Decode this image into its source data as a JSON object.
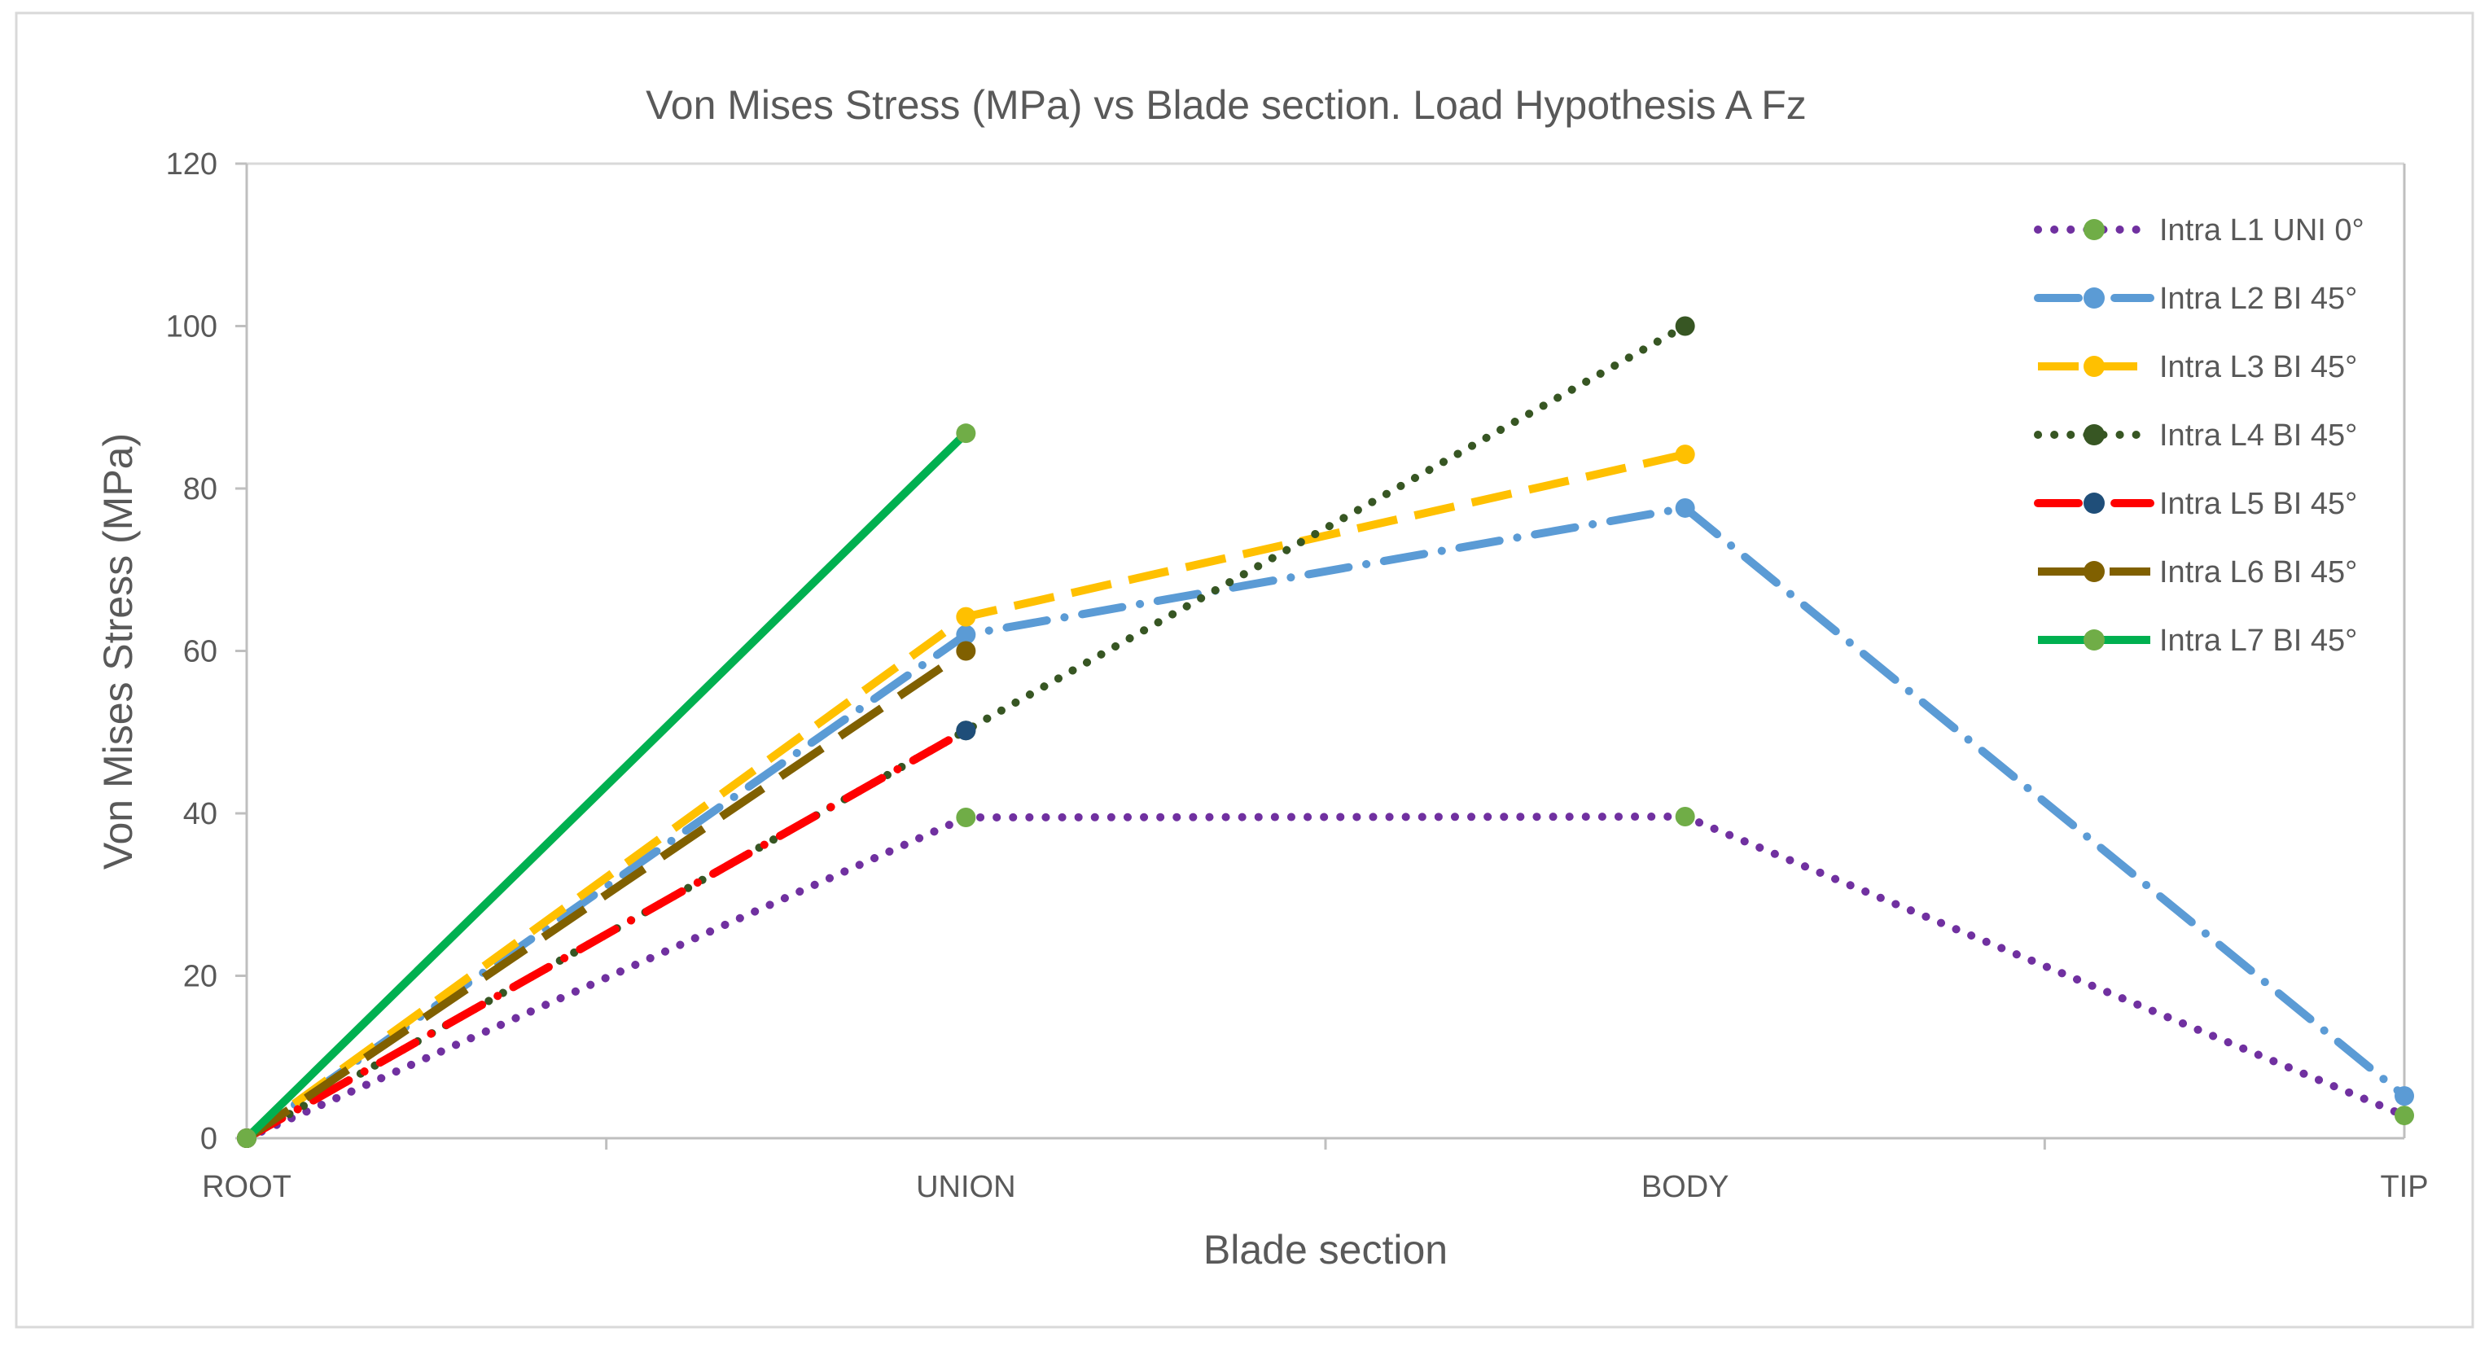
{
  "chart_data": {
    "type": "line",
    "title": "Von Mises Stress  (MPa) vs  Blade section. Load Hypothesis A Fz",
    "xlabel": "Blade section",
    "ylabel": "Von Mises Stress (MPa)",
    "categories": [
      "ROOT",
      "UNION",
      "BODY",
      "TIP"
    ],
    "ylim": [
      0,
      120
    ],
    "yticks": [
      0,
      20,
      40,
      60,
      80,
      100,
      120
    ],
    "legend_position": "top-right",
    "series": [
      {
        "name": "Intra L1 UNI 0°",
        "values": [
          0,
          39.5,
          39.6,
          2.8
        ],
        "color": "#7030A0",
        "marker_color": "#70AD47",
        "dash": "dotted"
      },
      {
        "name": "Intra L2 BI 45°",
        "values": [
          0,
          62,
          77.6,
          5.2
        ],
        "color": "#5B9BD5",
        "marker_color": "#5B9BD5",
        "dash": "dashdot"
      },
      {
        "name": "Intra L3 BI 45°",
        "values": [
          0,
          64.2,
          84.2,
          null
        ],
        "color": "#FFC000",
        "marker_color": "#FFC000",
        "dash": "dashed"
      },
      {
        "name": "Intra L4 BI 45°",
        "values": [
          0,
          50.2,
          100,
          null
        ],
        "color": "#375623",
        "marker_color": "#375623",
        "dash": "dotted"
      },
      {
        "name": "Intra L5 BI 45°",
        "values": [
          0,
          50.2,
          null,
          null
        ],
        "color": "#FF0000",
        "marker_color": "#1F4E79",
        "dash": "dashdot"
      },
      {
        "name": "Intra L6 BI 45°",
        "values": [
          0,
          60,
          null,
          null
        ],
        "color": "#806000",
        "marker_color": "#806000",
        "dash": "longdash"
      },
      {
        "name": "Intra L7 BI 45°",
        "values": [
          0,
          86.8,
          null,
          null
        ],
        "color": "#00B050",
        "marker_color": "#70AD47",
        "dash": "solid"
      }
    ]
  }
}
